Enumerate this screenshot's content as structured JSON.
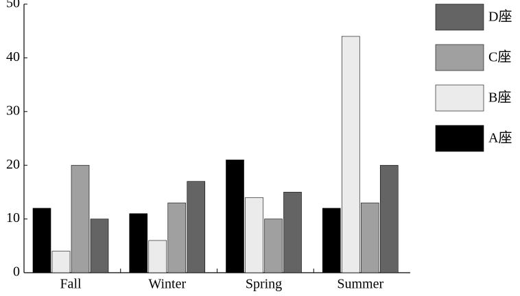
{
  "chart_data": {
    "type": "bar",
    "categories": [
      "Fall",
      "Winter",
      "Spring",
      "Summer"
    ],
    "series": [
      {
        "name": "A座",
        "color": "#000000",
        "values": [
          12,
          11,
          21,
          12
        ]
      },
      {
        "name": "B座",
        "color": "#ebebeb",
        "values": [
          4,
          6,
          14,
          44
        ]
      },
      {
        "name": "C座",
        "color": "#a0a0a0",
        "values": [
          20,
          13,
          10,
          13
        ]
      },
      {
        "name": "D座",
        "color": "#646464",
        "values": [
          10,
          17,
          15,
          20
        ]
      }
    ],
    "ylim": [
      0,
      50
    ],
    "yticks": [
      0,
      10,
      20,
      30,
      40,
      50
    ],
    "legend": "right"
  }
}
